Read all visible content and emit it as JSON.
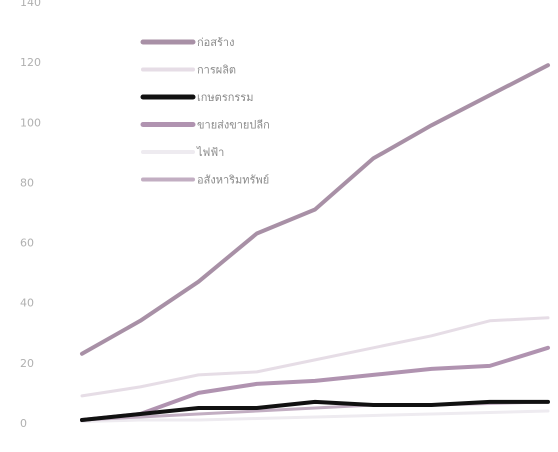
{
  "chart_data": {
    "type": "line",
    "title": "",
    "xlabel": "",
    "ylabel": "",
    "categories": [
      "",
      "",
      "",
      "",
      "",
      "",
      "",
      "",
      ""
    ],
    "ylim": [
      0,
      140
    ],
    "yticks": [
      0,
      20,
      40,
      60,
      80,
      100,
      120,
      140
    ],
    "grid": false,
    "legend_placement": "top-left",
    "series": [
      {
        "name": "ก่อสร้าง",
        "color": "#a890a6",
        "width": 4,
        "values": [
          23,
          34,
          47,
          63,
          71,
          88,
          99,
          109,
          119
        ]
      },
      {
        "name": "การผลิต",
        "color": "#e6dde6",
        "width": 3,
        "values": [
          9,
          12,
          16,
          17,
          21,
          25,
          29,
          34,
          35
        ]
      },
      {
        "name": "เกษตรกรรม",
        "color": "#111111",
        "width": 4,
        "values": [
          1,
          3,
          5,
          5,
          7,
          6,
          6,
          7,
          7
        ]
      },
      {
        "name": "ขายส่งขายปลีก",
        "color": "#b093b0",
        "width": 4,
        "values": [
          1,
          3,
          10,
          13,
          14,
          16,
          18,
          19,
          25
        ]
      },
      {
        "name": "ไฟฟ้า",
        "color": "#eeebf0",
        "width": 3,
        "values": [
          0.5,
          1,
          1,
          1.5,
          2,
          2.5,
          3,
          3.5,
          4
        ]
      },
      {
        "name": "อสังหาริมทรัพย์",
        "color": "#c2aec2",
        "width": 3,
        "values": [
          1,
          2,
          3,
          4,
          5,
          6,
          6,
          6.5,
          7
        ]
      }
    ]
  }
}
